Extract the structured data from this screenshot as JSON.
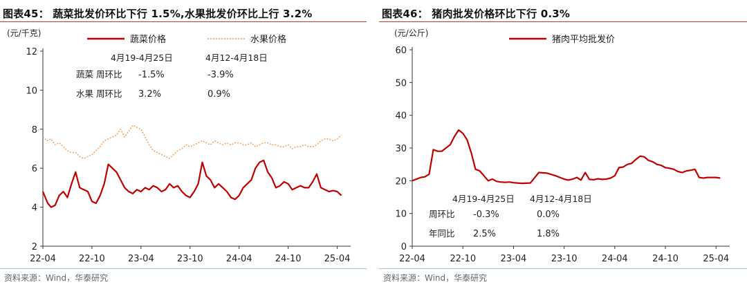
{
  "charts": [
    {
      "id": "veg",
      "title": "图表45： 蔬菜批发价环比下行 1.5%,水果批发价环比上行 3.2%",
      "unit": "(元/千克)",
      "source": "资料来源：Wind，华泰研究",
      "legend": [
        {
          "name": "蔬菜价格",
          "color": "#c00000",
          "style": "solid"
        },
        {
          "name": "水果价格",
          "color": "#f4a460",
          "style": "dotted"
        }
      ],
      "table": {
        "headers": [
          "4月19-4月25日",
          "4月12-4月18日"
        ],
        "rows": [
          {
            "label": "蔬菜  周环比",
            "values": [
              "-1.5%",
              "-3.9%"
            ]
          },
          {
            "label": "水果  周环比",
            "values": [
              "3.2%",
              "0.9%"
            ]
          }
        ]
      }
    },
    {
      "id": "pork",
      "title": "图表46： 猪肉批发价格环比下行 0.3%",
      "unit": "(元/公斤)",
      "source": "资料来源：Wind，华泰研究",
      "legend": [
        {
          "name": "猪肉平均批发价",
          "color": "#c00000",
          "style": "solid"
        }
      ],
      "table": {
        "headers": [
          "4月19-4月25日",
          "4月12-4月18日"
        ],
        "rows": [
          {
            "label": "周环比",
            "values": [
              "-0.3%",
              "0.0%"
            ]
          },
          {
            "label": "年同比",
            "values": [
              "2.5%",
              "1.8%"
            ]
          }
        ]
      }
    }
  ],
  "chart_data": [
    {
      "type": "line",
      "ylim": [
        2,
        12
      ],
      "yticks": [
        2,
        4,
        6,
        8,
        10,
        12
      ],
      "xlim": [
        0,
        36.8
      ],
      "xticks": [
        "22-04",
        "22-10",
        "23-04",
        "23-10",
        "24-04",
        "24-10",
        "25-04"
      ],
      "series": [
        {
          "name": "蔬菜价格",
          "color": "#c00000",
          "style": "solid",
          "x": [
            0,
            0.3,
            0.6,
            1.0,
            1.5,
            2.0,
            2.5,
            3.0,
            3.5,
            4.0,
            4.5,
            5.0,
            5.5,
            6.0,
            6.5,
            7.0,
            7.5,
            8.0,
            8.5,
            9.0,
            9.5,
            10.0,
            10.5,
            11.0,
            11.5,
            12.0,
            12.5,
            13.0,
            13.5,
            14.0,
            14.5,
            15.0,
            15.5,
            16.0,
            16.5,
            17.0,
            17.5,
            18.0,
            18.5,
            19.0,
            19.5,
            20.0,
            20.5,
            21.0,
            21.5,
            22.0,
            22.5,
            23.0,
            23.5,
            24.0,
            24.5,
            25.0,
            25.5,
            26.0,
            26.5,
            27.0,
            27.5,
            28.0,
            28.5,
            29.0,
            29.5,
            30.0,
            30.5,
            31.0,
            31.5,
            32.0,
            32.5,
            33.0,
            33.5,
            34.0,
            34.5,
            35.0,
            35.5,
            36.0,
            36.5
          ],
          "y": [
            4.8,
            4.5,
            4.2,
            4.0,
            4.1,
            4.6,
            4.8,
            4.5,
            5.2,
            5.8,
            5.0,
            4.9,
            4.8,
            4.3,
            4.2,
            4.6,
            5.2,
            6.2,
            6.0,
            5.8,
            5.4,
            5.0,
            4.8,
            4.7,
            4.9,
            4.8,
            5.0,
            4.9,
            5.1,
            5.0,
            4.8,
            4.9,
            5.2,
            5.0,
            5.1,
            4.8,
            4.6,
            4.5,
            4.8,
            5.2,
            6.3,
            5.6,
            5.4,
            5.0,
            5.2,
            5.0,
            4.8,
            4.5,
            4.4,
            4.6,
            5.0,
            5.2,
            5.4,
            6.0,
            6.3,
            6.4,
            5.8,
            5.5,
            5.0,
            5.1,
            5.3,
            5.2,
            4.9,
            5.0,
            5.1,
            5.0,
            5.0,
            5.3,
            5.7,
            5.0,
            4.9,
            4.8,
            4.85,
            4.8,
            4.6
          ]
        },
        {
          "name": "水果价格",
          "color": "#f4a460",
          "style": "dotted",
          "x": [
            0,
            0.5,
            1.0,
            1.5,
            2.0,
            2.5,
            3.0,
            3.5,
            4.0,
            4.5,
            5.0,
            5.5,
            6.0,
            6.5,
            7.0,
            7.5,
            8.0,
            8.5,
            9.0,
            9.5,
            10.0,
            10.5,
            11.0,
            11.5,
            12.0,
            12.5,
            13.0,
            13.5,
            14.0,
            14.5,
            15.0,
            15.5,
            16.0,
            16.5,
            17.0,
            17.5,
            18.0,
            18.5,
            19.0,
            19.5,
            20.0,
            20.5,
            21.0,
            21.5,
            22.0,
            22.5,
            23.0,
            23.5,
            24.0,
            24.5,
            25.0,
            25.5,
            26.0,
            26.5,
            27.0,
            27.5,
            28.0,
            28.5,
            29.0,
            29.5,
            30.0,
            30.5,
            31.0,
            31.5,
            32.0,
            32.5,
            33.0,
            33.5,
            34.0,
            34.5,
            35.0,
            35.5,
            36.0,
            36.5
          ],
          "y": [
            7.6,
            7.4,
            7.5,
            7.2,
            7.3,
            7.1,
            6.9,
            6.8,
            6.8,
            6.6,
            6.5,
            6.6,
            6.7,
            6.9,
            7.1,
            7.4,
            7.5,
            7.6,
            7.7,
            8.0,
            7.6,
            7.9,
            8.2,
            8.1,
            8.0,
            7.6,
            7.2,
            6.9,
            6.8,
            6.7,
            6.6,
            6.5,
            6.7,
            6.9,
            7.0,
            7.2,
            7.1,
            7.2,
            7.3,
            7.4,
            7.3,
            7.2,
            7.4,
            7.3,
            7.2,
            7.3,
            7.2,
            7.3,
            7.3,
            7.2,
            7.2,
            7.3,
            7.1,
            7.2,
            7.3,
            7.3,
            7.2,
            7.2,
            7.1,
            7.1,
            7.2,
            7.0,
            7.1,
            7.1,
            7.2,
            7.1,
            7.1,
            7.2,
            7.4,
            7.5,
            7.5,
            7.4,
            7.5,
            7.7
          ]
        }
      ]
    },
    {
      "type": "line",
      "ylim": [
        0,
        60
      ],
      "yticks": [
        0,
        10,
        20,
        30,
        40,
        50,
        60
      ],
      "xlim": [
        0,
        36.8
      ],
      "xticks": [
        "22-04",
        "22-10",
        "23-04",
        "23-10",
        "24-04",
        "24-10",
        "25-04"
      ],
      "series": [
        {
          "name": "猪肉平均批发价",
          "color": "#c00000",
          "style": "solid",
          "x": [
            0,
            0.5,
            1.0,
            1.5,
            2.0,
            2.5,
            3.0,
            3.5,
            4.0,
            4.5,
            5.0,
            5.5,
            6.0,
            6.5,
            7.0,
            7.5,
            8.0,
            8.5,
            9.0,
            9.5,
            10.0,
            10.5,
            11.0,
            11.5,
            12.0,
            13.0,
            14.0,
            15.0,
            16.0,
            17.0,
            17.5,
            18.0,
            18.5,
            19.0,
            19.5,
            20.0,
            20.5,
            21.0,
            21.5,
            22.0,
            22.5,
            23.0,
            23.5,
            24.0,
            24.5,
            25.0,
            25.5,
            26.0,
            26.5,
            27.0,
            27.5,
            28.0,
            28.5,
            29.0,
            29.5,
            30.0,
            30.5,
            31.0,
            31.5,
            32.0,
            32.5,
            33.0,
            33.5,
            34.0,
            34.5,
            35.0,
            35.5,
            36.0,
            36.5
          ],
          "y": [
            20.0,
            20.5,
            21.0,
            21.2,
            22.0,
            29.5,
            29.0,
            29.0,
            30.0,
            31.0,
            33.5,
            35.5,
            34.5,
            32.5,
            28.5,
            23.5,
            23.0,
            21.5,
            20.0,
            20.5,
            19.8,
            19.6,
            19.5,
            19.6,
            19.4,
            19.2,
            19.3,
            22.5,
            22.3,
            21.5,
            21.0,
            20.5,
            20.2,
            20.5,
            21.0,
            20.2,
            22.5,
            20.4,
            20.3,
            20.6,
            20.4,
            20.5,
            20.8,
            21.5,
            24.0,
            24.2,
            25.0,
            25.3,
            26.5,
            27.5,
            27.3,
            26.2,
            25.8,
            25.0,
            24.7,
            24.0,
            23.8,
            23.5,
            22.8,
            22.5,
            23.0,
            23.2,
            23.5,
            21.0,
            20.8,
            21.0,
            21.0,
            21.0,
            20.8
          ]
        }
      ]
    }
  ]
}
